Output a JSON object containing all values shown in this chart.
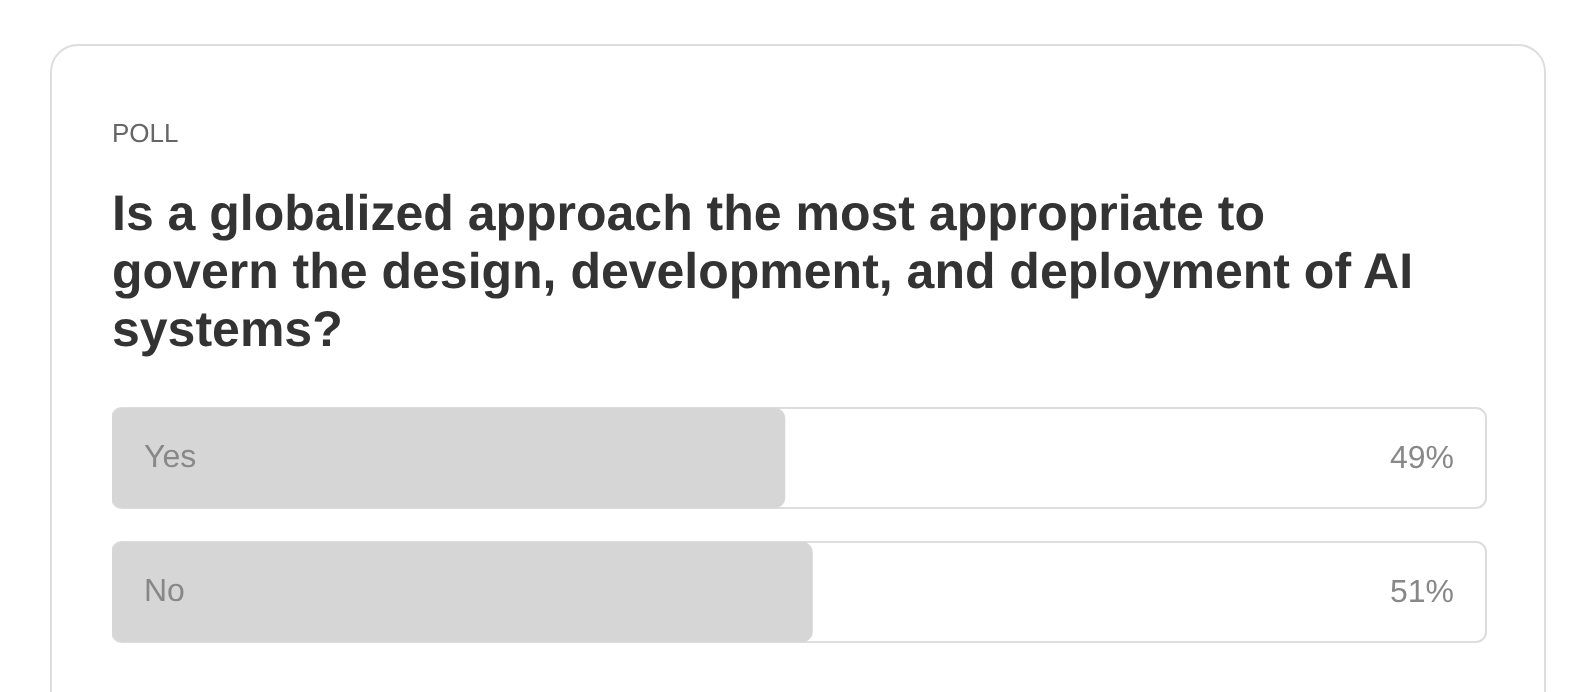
{
  "chart_data": {
    "type": "bar",
    "orientation": "horizontal",
    "title": "Is a globalized approach the most appropriate to govern the design, development, and deployment of AI systems?",
    "annotations": [
      "POLL"
    ],
    "categories": [
      "Yes",
      "No"
    ],
    "values": [
      49,
      51
    ],
    "value_labels": [
      "49%",
      "51%"
    ],
    "color": "#d6d6d6",
    "xlim": [
      0,
      100
    ],
    "grid": false,
    "legend": false
  }
}
